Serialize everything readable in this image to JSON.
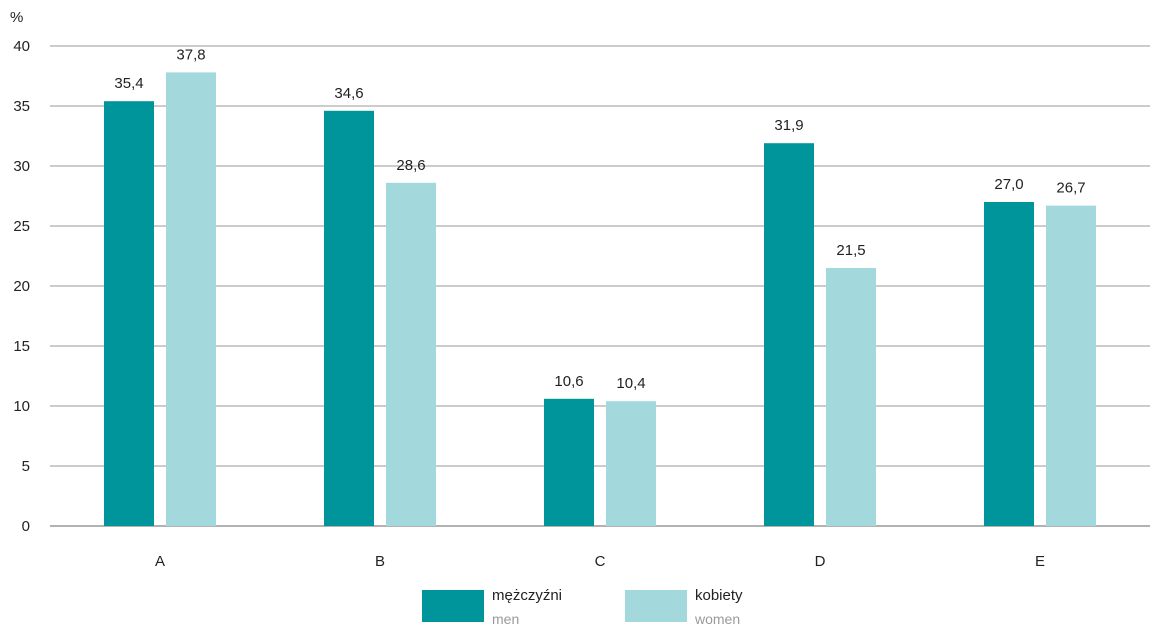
{
  "chart_data": {
    "type": "bar",
    "title": "",
    "xlabel": "",
    "ylabel": "%",
    "ylim": [
      0,
      40
    ],
    "yticks": [
      0,
      5,
      10,
      15,
      20,
      25,
      30,
      35,
      40
    ],
    "grid": true,
    "legend_position": "bottom",
    "categories": [
      "A",
      "B",
      "C",
      "D",
      "E"
    ],
    "series": [
      {
        "name": "mężczyźni",
        "name_en": "men",
        "color": "#00959a",
        "values": [
          35.4,
          34.6,
          10.6,
          31.9,
          27.0
        ],
        "labels": [
          "35,4",
          "34,6",
          "10,6",
          "31,9",
          "27,0"
        ]
      },
      {
        "name": "kobiety",
        "name_en": "women",
        "color": "#a3d8dd",
        "values": [
          37.8,
          28.6,
          10.4,
          21.5,
          26.7
        ],
        "labels": [
          "37,8",
          "28,6",
          "10,4",
          "21,5",
          "26,7"
        ]
      }
    ]
  }
}
